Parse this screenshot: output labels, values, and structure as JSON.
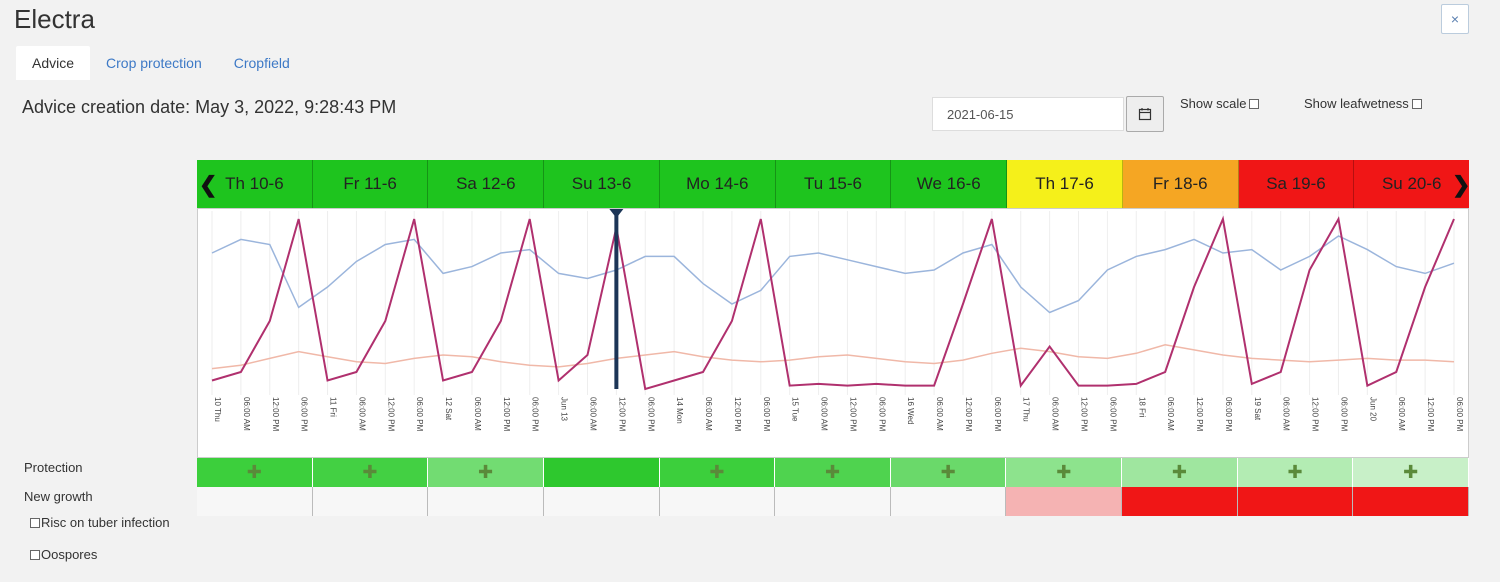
{
  "window": {
    "title": "Electra",
    "close_label": "×"
  },
  "tabs": [
    {
      "label": "Advice",
      "active": true
    },
    {
      "label": "Crop protection",
      "active": false
    },
    {
      "label": "Cropfield",
      "active": false
    }
  ],
  "advice_creation": "Advice creation date: May 3, 2022, 9:28:43 PM",
  "date_input": {
    "value": "2021-06-15"
  },
  "options": {
    "show_scale": "Show scale",
    "show_leafwetness": "Show leafwetness"
  },
  "days": [
    {
      "label": "Th 10-6",
      "color": "#1ec41e"
    },
    {
      "label": "Fr 11-6",
      "color": "#1ec41e"
    },
    {
      "label": "Sa 12-6",
      "color": "#1ec41e"
    },
    {
      "label": "Su 13-6",
      "color": "#1ec41e"
    },
    {
      "label": "Mo 14-6",
      "color": "#1ec41e"
    },
    {
      "label": "Tu 15-6",
      "color": "#1ec41e"
    },
    {
      "label": "We 16-6",
      "color": "#1ec41e"
    },
    {
      "label": "Th 17-6",
      "color": "#f5f01a"
    },
    {
      "label": "Fr 18-6",
      "color": "#f5a623"
    },
    {
      "label": "Sa 19-6",
      "color": "#f01616"
    },
    {
      "label": "Su 20-6",
      "color": "#f01616"
    }
  ],
  "row_labels": {
    "protection": "Protection",
    "new_growth": "New growth",
    "risk_tuber": "Risc on tuber infection",
    "oospores": "Oospores"
  },
  "protection_cells": [
    {
      "color": "#3ccf3c",
      "icon": "plus-cross-icon"
    },
    {
      "color": "#43d043",
      "icon": "plus-cross-icon"
    },
    {
      "color": "#72dc72",
      "icon": "plus-cross-icon"
    },
    {
      "color": "#2ec82e",
      "icon": ""
    },
    {
      "color": "#3ccf3c",
      "icon": "plus-cross-icon"
    },
    {
      "color": "#4fd34f",
      "icon": "plus-cross-icon"
    },
    {
      "color": "#6ad96a",
      "icon": "plus-cross-icon"
    },
    {
      "color": "#8de38d",
      "icon": "plus-cross-icon"
    },
    {
      "color": "#9fe69f",
      "icon": "plus-cross-icon"
    },
    {
      "color": "#b3ecb3",
      "icon": "plus-cross-icon"
    },
    {
      "color": "#c8f0c8",
      "icon": "plus-cross-icon"
    }
  ],
  "growth_cells": [
    "",
    "",
    "",
    "",
    "",
    "",
    "",
    "#f5b3b3",
    "#f01616",
    "#f01616",
    "#f01616"
  ],
  "x_ticks": [
    "10 Thu",
    "06:00 AM",
    "12:00 PM",
    "06:00 PM",
    "11 Fri",
    "06:00 AM",
    "12:00 PM",
    "06:00 PM",
    "12 Sat",
    "06:00 AM",
    "12:00 PM",
    "06:00 PM",
    "Jun 13",
    "06:00 AM",
    "12:00 PM",
    "06:00 PM",
    "14 Mon",
    "06:00 AM",
    "12:00 PM",
    "06:00 PM",
    "15 Tue",
    "06:00 AM",
    "12:00 PM",
    "06:00 PM",
    "16 Wed",
    "06:00 AM",
    "12:00 PM",
    "06:00 PM",
    "17 Thu",
    "06:00 AM",
    "12:00 PM",
    "06:00 PM",
    "18 Fri",
    "06:00 AM",
    "12:00 PM",
    "06:00 PM",
    "19 Sat",
    "06:00 AM",
    "12:00 PM",
    "06:00 PM",
    "Jun 20",
    "06:00 AM",
    "12:00 PM",
    "06:00 PM"
  ],
  "colors": {
    "humidity": "#9bb5dc",
    "temperature": "#f0b8a8",
    "risk": "#b0306e",
    "marker": "#1c3557"
  },
  "chart_data": {
    "type": "line",
    "x": [
      "10 Thu",
      "06:00 AM",
      "12:00 PM",
      "06:00 PM",
      "11 Fri",
      "06:00 AM",
      "12:00 PM",
      "06:00 PM",
      "12 Sat",
      "06:00 AM",
      "12:00 PM",
      "06:00 PM",
      "Jun 13",
      "06:00 AM",
      "12:00 PM",
      "06:00 PM",
      "14 Mon",
      "06:00 AM",
      "12:00 PM",
      "06:00 PM",
      "15 Tue",
      "06:00 AM",
      "12:00 PM",
      "06:00 PM",
      "16 Wed",
      "06:00 AM",
      "12:00 PM",
      "06:00 PM",
      "17 Thu",
      "06:00 AM",
      "12:00 PM",
      "06:00 PM",
      "18 Fri",
      "06:00 AM",
      "12:00 PM",
      "06:00 PM",
      "19 Sat",
      "06:00 AM",
      "12:00 PM",
      "06:00 PM",
      "Jun 20",
      "06:00 AM",
      "12:00 PM",
      "06:00 PM"
    ],
    "series": [
      {
        "values": [
          80,
          88,
          85,
          48,
          60,
          75,
          85,
          88,
          68,
          72,
          80,
          82,
          68,
          65,
          70,
          78,
          78,
          62,
          50,
          58,
          78,
          80,
          76,
          72,
          68,
          70,
          80,
          85,
          60,
          45,
          52,
          70,
          78,
          82,
          88,
          80,
          82,
          70,
          78,
          90,
          82,
          72,
          68,
          74
        ]
      },
      {
        "values": [
          12,
          14,
          18,
          22,
          19,
          16,
          15,
          18,
          20,
          19,
          16,
          14,
          13,
          15,
          18,
          20,
          22,
          19,
          17,
          16,
          17,
          19,
          20,
          18,
          16,
          15,
          17,
          21,
          24,
          22,
          19,
          18,
          21,
          26,
          23,
          20,
          18,
          17,
          16,
          17,
          18,
          17,
          17,
          16
        ]
      },
      {
        "values": [
          5,
          10,
          40,
          100,
          5,
          10,
          40,
          100,
          5,
          10,
          40,
          100,
          5,
          20,
          95,
          0,
          5,
          10,
          40,
          100,
          2,
          3,
          2,
          3,
          2,
          2,
          50,
          100,
          2,
          25,
          2,
          2,
          3,
          10,
          60,
          100,
          3,
          10,
          70,
          100,
          2,
          10,
          60,
          100
        ]
      }
    ],
    "ylim": [
      0,
      100
    ]
  }
}
